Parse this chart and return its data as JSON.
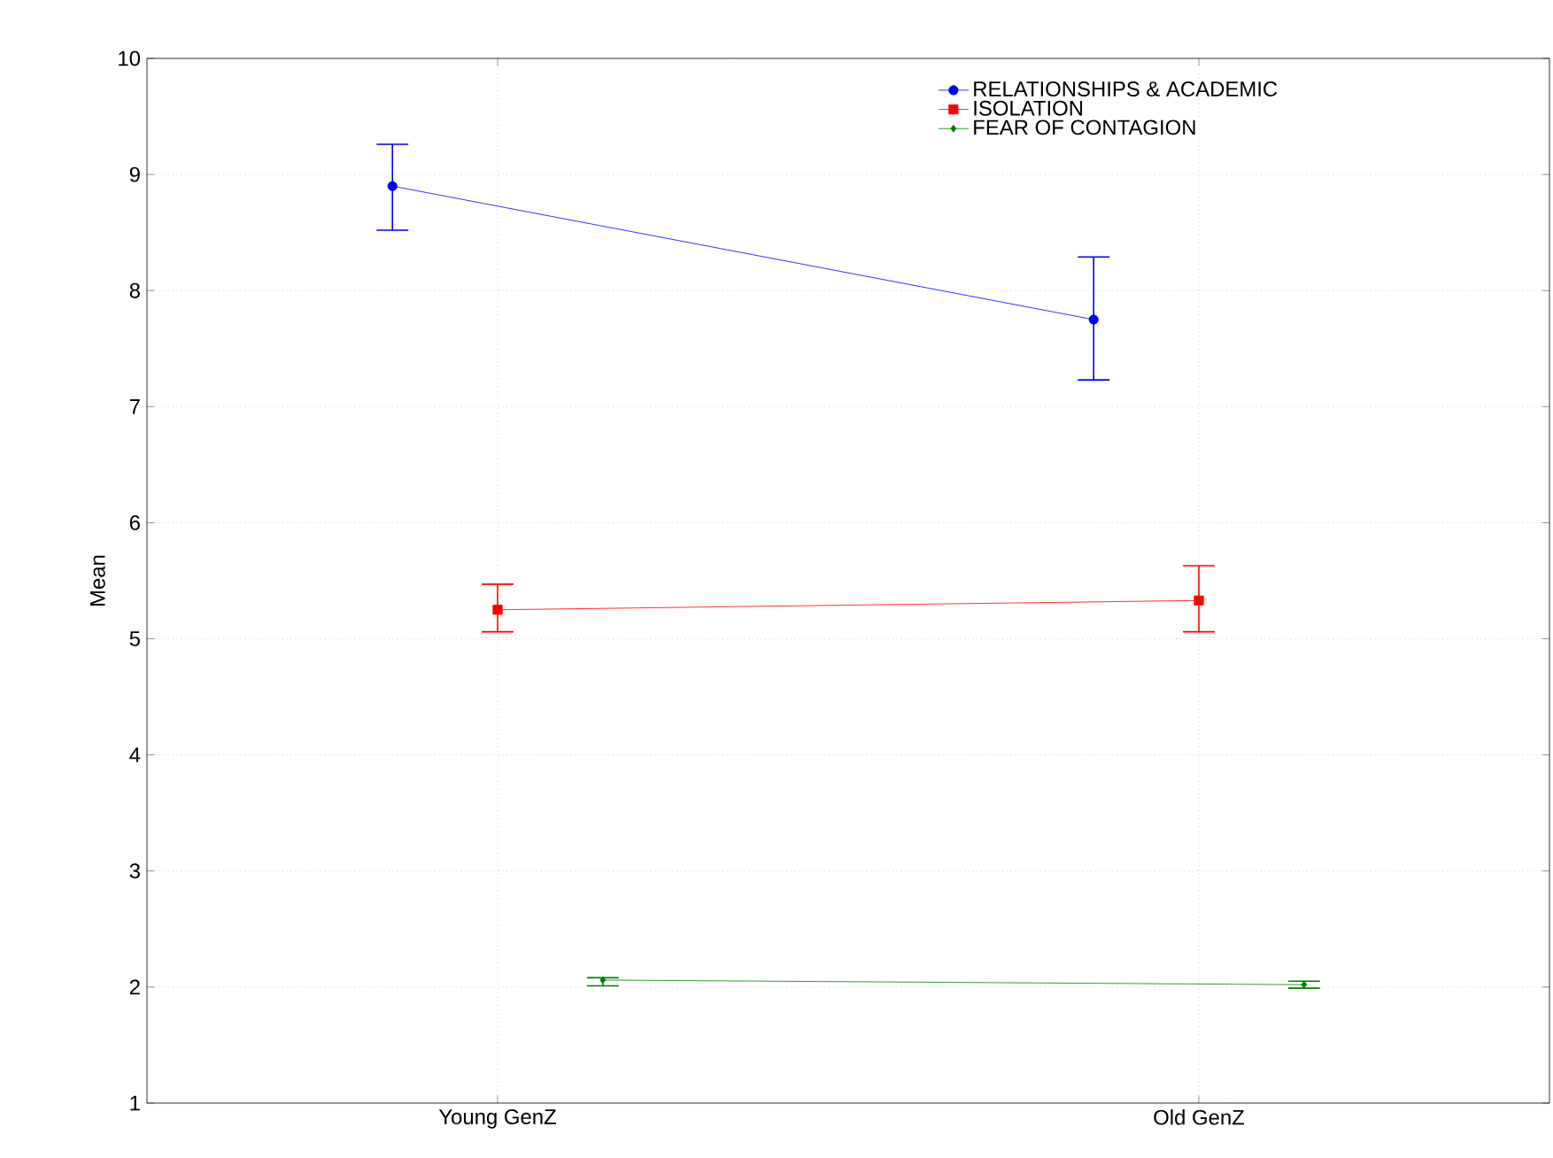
{
  "chart_data": {
    "type": "line",
    "ylabel": "Mean",
    "categories": [
      "Young GenZ",
      "Old GenZ"
    ],
    "series": [
      {
        "name": "RELATIONSHIPS & ACADEMIC",
        "color": "#0000ff",
        "marker": "circle",
        "values": [
          8.9,
          7.75
        ],
        "errors": [
          [
            8.52,
            9.26
          ],
          [
            7.23,
            8.29
          ]
        ]
      },
      {
        "name": "ISOLATION",
        "color": "#ff0000",
        "marker": "square",
        "values": [
          5.25,
          5.33
        ],
        "errors": [
          [
            5.06,
            5.47
          ],
          [
            5.06,
            5.63
          ]
        ]
      },
      {
        "name": "FEAR OF CONTAGION",
        "color": "#008000",
        "marker": "diamond",
        "values": [
          2.06,
          2.02
        ],
        "errors": [
          [
            2.01,
            2.08
          ],
          [
            1.99,
            2.05
          ]
        ]
      }
    ],
    "ylim": [
      1,
      10
    ],
    "yticks": [
      1,
      2,
      3,
      4,
      5,
      6,
      7,
      8,
      9,
      10
    ],
    "grid": true,
    "legend": "top right",
    "line_style": "solid"
  }
}
